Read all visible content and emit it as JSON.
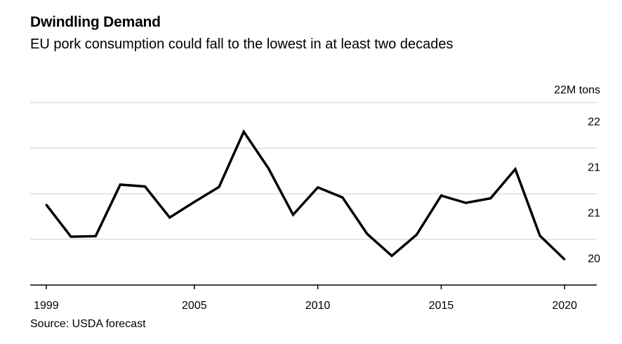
{
  "chart_data": {
    "type": "line",
    "title": "Dwindling Demand",
    "subtitle": "EU pork consumption could fall to the lowest in at least two decades",
    "source": "Source: USDA forecast",
    "unit_label": "22M tons",
    "x": [
      1999,
      2000,
      2001,
      2002,
      2003,
      2004,
      2005,
      2006,
      2007,
      2008,
      2009,
      2010,
      2011,
      2012,
      2013,
      2014,
      2015,
      2016,
      2017,
      2018,
      2019,
      2020
    ],
    "series": [
      {
        "values": [
          20.88,
          20.53,
          20.535,
          21.1,
          21.08,
          20.74,
          20.91,
          21.075,
          21.68,
          21.28,
          20.77,
          21.07,
          20.96,
          20.56,
          20.32,
          20.55,
          20.98,
          20.9,
          20.95,
          21.27,
          20.54,
          20.28
        ]
      }
    ],
    "y_gridlines": [
      20.5,
      21.0,
      21.5,
      22.0
    ],
    "y_ticklabels": [
      {
        "value": 20.25,
        "label": "20"
      },
      {
        "value": 20.75,
        "label": "21"
      },
      {
        "value": 21.25,
        "label": "21"
      },
      {
        "value": 21.75,
        "label": "22"
      }
    ],
    "x_ticks": [
      1999,
      2005,
      2010,
      2015,
      2020
    ],
    "xlim": [
      1998.35,
      2021.3
    ],
    "ylim": [
      20.0,
      22.0
    ],
    "grid": true,
    "line_color": "#000000",
    "grid_color": "#cccccc"
  }
}
